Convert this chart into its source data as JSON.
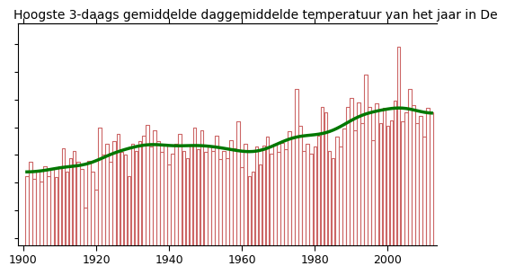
{
  "title": "Hoogste 3-daags gemiddelde daggemiddelde temperatuur van het jaar in De",
  "title_fontsize": 10,
  "years": [
    1901,
    1902,
    1903,
    1904,
    1905,
    1906,
    1907,
    1908,
    1909,
    1910,
    1911,
    1912,
    1913,
    1914,
    1915,
    1916,
    1917,
    1918,
    1919,
    1920,
    1921,
    1922,
    1923,
    1924,
    1925,
    1926,
    1927,
    1928,
    1929,
    1930,
    1931,
    1932,
    1933,
    1934,
    1935,
    1936,
    1937,
    1938,
    1939,
    1940,
    1941,
    1942,
    1943,
    1944,
    1945,
    1946,
    1947,
    1948,
    1949,
    1950,
    1951,
    1952,
    1953,
    1954,
    1955,
    1956,
    1957,
    1958,
    1959,
    1960,
    1961,
    1962,
    1963,
    1964,
    1965,
    1966,
    1967,
    1968,
    1969,
    1970,
    1971,
    1972,
    1973,
    1974,
    1975,
    1976,
    1977,
    1978,
    1979,
    1980,
    1981,
    1982,
    1983,
    1984,
    1985,
    1986,
    1987,
    1988,
    1989,
    1990,
    1991,
    1992,
    1993,
    1994,
    1995,
    1996,
    1997,
    1998,
    1999,
    2000,
    2001,
    2002,
    2003,
    2004,
    2005,
    2006,
    2007,
    2008,
    2009,
    2010,
    2011,
    2012
  ],
  "values": [
    20.5,
    21.5,
    20.3,
    20.8,
    20.1,
    21.2,
    20.5,
    21.0,
    20.4,
    21.2,
    22.5,
    20.8,
    21.8,
    22.3,
    21.5,
    21.0,
    18.2,
    21.6,
    20.8,
    19.5,
    24.0,
    22.0,
    22.8,
    21.5,
    23.0,
    23.5,
    22.2,
    22.0,
    20.5,
    22.8,
    22.3,
    23.0,
    23.4,
    24.2,
    22.6,
    23.8,
    23.0,
    22.2,
    22.8,
    21.3,
    22.1,
    22.8,
    23.5,
    22.3,
    21.8,
    22.7,
    24.0,
    22.4,
    23.8,
    22.2,
    22.6,
    22.3,
    23.4,
    21.7,
    22.3,
    21.8,
    23.1,
    22.5,
    24.4,
    21.1,
    22.8,
    20.5,
    20.8,
    22.6,
    21.3,
    22.7,
    23.3,
    22.1,
    22.8,
    22.2,
    22.9,
    22.4,
    23.7,
    23.3,
    26.8,
    24.1,
    22.3,
    22.8,
    22.1,
    22.6,
    23.4,
    25.5,
    25.1,
    22.3,
    21.8,
    23.3,
    22.6,
    23.9,
    25.5,
    26.1,
    23.8,
    25.8,
    24.3,
    27.8,
    25.5,
    23.1,
    25.7,
    24.3,
    25.4,
    24.1,
    24.5,
    25.9,
    29.8,
    24.4,
    25.1,
    26.8,
    25.6,
    24.3,
    24.8,
    23.3,
    25.4,
    25.1
  ],
  "bar_color": "#cc6666",
  "line_color": "#007700",
  "background_color": "#ffffff",
  "xlim": [
    1898.5,
    2013.5
  ],
  "ylim": [
    15.5,
    31.5
  ],
  "xticks": [
    1900,
    1920,
    1940,
    1960,
    1980,
    2000
  ],
  "xticklabels": [
    "1900",
    "1920",
    "1940",
    "1960",
    "1980",
    "2000"
  ],
  "yticks": [
    16,
    18,
    20,
    22,
    24,
    26,
    28,
    30
  ],
  "smooth_window": 15,
  "line_width": 2.5
}
